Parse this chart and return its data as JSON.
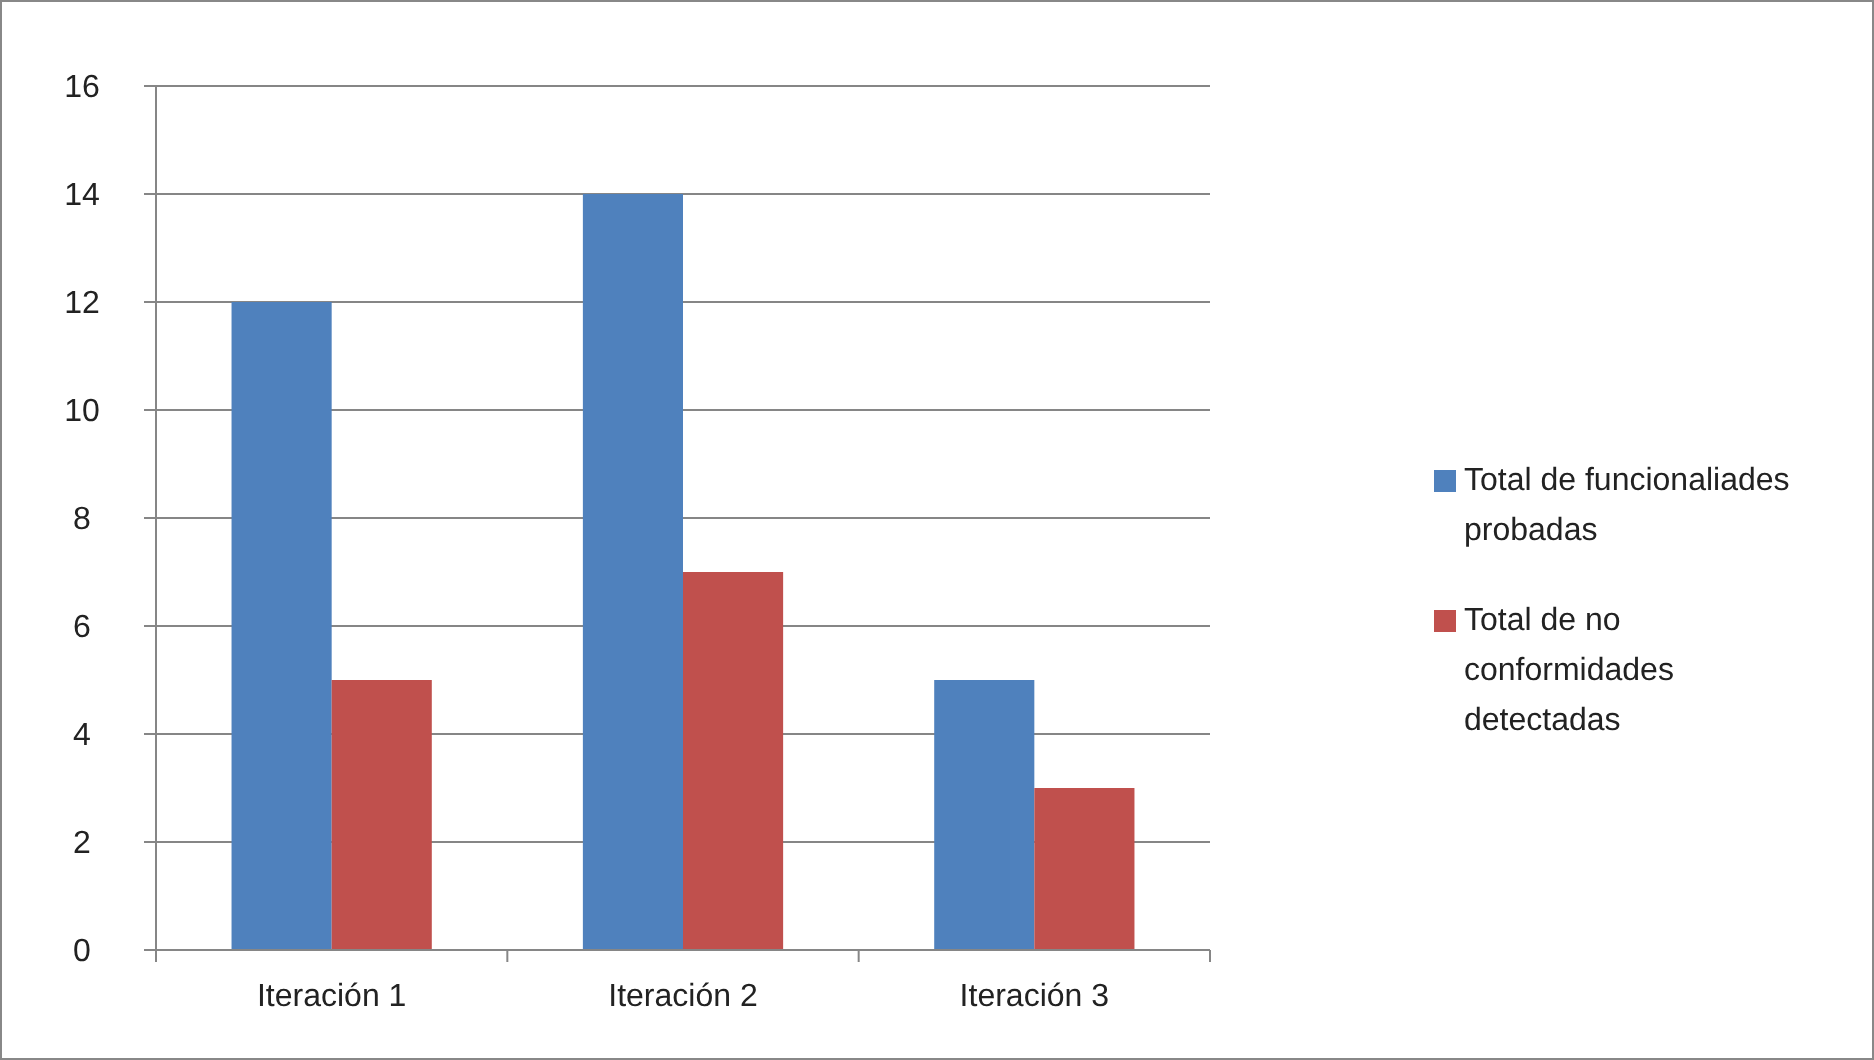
{
  "chart_data": {
    "type": "bar",
    "categories": [
      "Iteración 1",
      "Iteración 2",
      "Iteración 3"
    ],
    "series": [
      {
        "name": "Total de funcionaliades probadas",
        "color": "#4f81bd",
        "values": [
          12,
          14,
          5
        ]
      },
      {
        "name": "Total de no conformidades detectadas",
        "color": "#c0504d",
        "values": [
          5,
          7,
          3
        ]
      }
    ],
    "ylim": [
      0,
      16
    ],
    "yticks": [
      0,
      2,
      4,
      6,
      8,
      10,
      12,
      14,
      16
    ],
    "grid": "y",
    "legend": "right"
  }
}
